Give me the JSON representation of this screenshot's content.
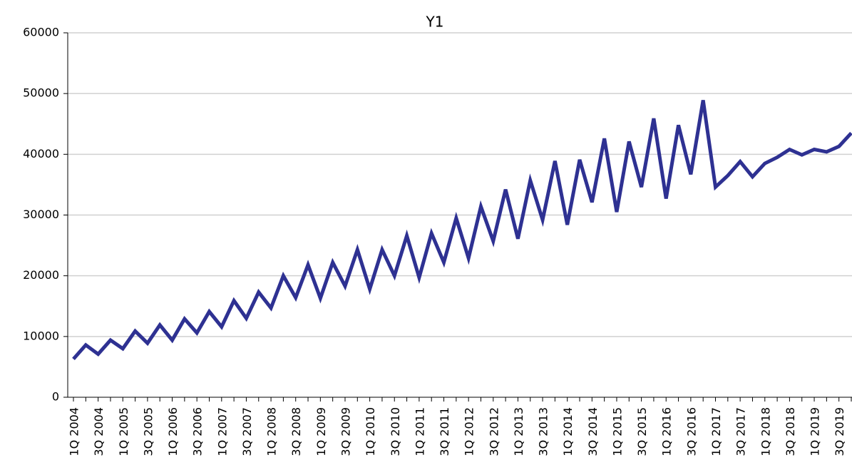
{
  "chart_data": {
    "type": "line",
    "title": "Y1",
    "categories": [
      "1Q 2004",
      null,
      "3Q 2004",
      null,
      "1Q 2005",
      null,
      "3Q 2005",
      null,
      "1Q 2006",
      null,
      "3Q 2006",
      null,
      "1Q 2007",
      null,
      "3Q 2007",
      null,
      "1Q 2008",
      null,
      "3Q 2008",
      null,
      "1Q 2009",
      null,
      "3Q 2009",
      null,
      "1Q 2010",
      null,
      "3Q 2010",
      null,
      "1Q 2011",
      null,
      "3Q 2011",
      null,
      "1Q 2012",
      null,
      "3Q 2012",
      null,
      "1Q 2013",
      null,
      "3Q 2013",
      null,
      "1Q 2014",
      null,
      "3Q 2014",
      null,
      "1Q 2015",
      null,
      "3Q 2015",
      null,
      "1Q 2016",
      null,
      "3Q 2016",
      null,
      "1Q 2017",
      null,
      "3Q 2017",
      null,
      "1Q 2018",
      null,
      "3Q 2018",
      null,
      "1Q 2019",
      null,
      "3Q 2019",
      null
    ],
    "series": [
      {
        "name": "Y1",
        "color": "#2e3192",
        "values": [
          6300,
          8600,
          7100,
          9400,
          8000,
          10900,
          8900,
          11900,
          9400,
          12900,
          10600,
          14100,
          11600,
          15900,
          13000,
          17300,
          14700,
          20000,
          16400,
          21800,
          16300,
          22200,
          18300,
          24300,
          17800,
          24300,
          20000,
          26600,
          19700,
          27000,
          22200,
          29500,
          22900,
          31400,
          25700,
          34200,
          26100,
          35700,
          29200,
          38900,
          28400,
          39100,
          32100,
          42600,
          30500,
          42100,
          34600,
          45900,
          32700,
          44800,
          36700,
          48900,
          34600,
          36500,
          38800,
          36300,
          38500,
          39500,
          40800,
          39900,
          40800,
          40400,
          41300,
          43500
        ]
      }
    ],
    "ylim": [
      0,
      60000
    ],
    "yticks": [
      0,
      10000,
      20000,
      30000,
      40000,
      50000,
      60000
    ],
    "grid": true
  }
}
